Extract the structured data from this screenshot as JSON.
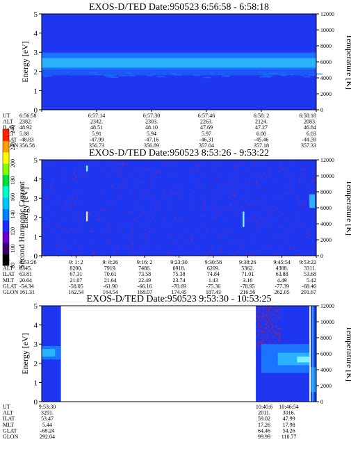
{
  "colors": {
    "background_blue": "#1f36f0",
    "band_mid": "#1a74ff",
    "band_core": "#2ab2ff",
    "streak": "#7ff0ff",
    "speckle_purple": "#7a2aa8",
    "speckle_red": "#c02040",
    "colorbar": [
      "#000000",
      "#3a006e",
      "#6a00c8",
      "#1a2cff",
      "#0080ff",
      "#00c8ff",
      "#00ffc8",
      "#00e040",
      "#80ff00",
      "#ffff00",
      "#ffa000",
      "#ff2000"
    ]
  },
  "colorbar": {
    "label": "Second Harmonic Current",
    "ticks": [
      "80",
      "100",
      "120",
      "140",
      "160",
      "180",
      "200",
      "220",
      "240"
    ],
    "range": [
      80,
      240
    ]
  },
  "chart_data": [
    {
      "type": "heatmap",
      "title": "EXOS-D/TED   Date:950523   6:56:58 - 6:58:18",
      "ylabel": "Energy [eV]",
      "y2label": "Temperature [K]",
      "ylim": [
        0,
        5
      ],
      "y2lim": [
        0,
        12000
      ],
      "yticks": [
        "0",
        "1",
        "2",
        "3",
        "4",
        "5"
      ],
      "y2ticks": [
        "0",
        "2000",
        "4000",
        "6000",
        "8000",
        "10000",
        "12000"
      ],
      "time_range": [
        "6:56:58",
        "6:58:18"
      ],
      "band": {
        "core_eV": [
          2.2,
          2.7
        ],
        "halo_eV": [
          1.8,
          3.0
        ]
      },
      "ephemeris": {
        "labels": [
          "UT",
          "ALT",
          "ILAT",
          "MLT",
          "GLAT",
          "GLON"
        ],
        "columns": [
          [
            "6:56:58",
            "2382.",
            "48.92",
            "5.88",
            "-48.83",
            "356.58"
          ],
          [
            "6:57:14",
            "2342.",
            "48.51",
            "5.91",
            "-47.99",
            "356.73"
          ],
          [
            "6:57:30",
            "2303.",
            "48.10",
            "5.94",
            "-47.16",
            "356.89"
          ],
          [
            "6:57:46",
            "2263.",
            "47.69",
            "5.97",
            "-46.31",
            "357.04"
          ],
          [
            "6:58: 2",
            "2124.",
            "47.27",
            "6.00",
            "-45.46",
            "357.18"
          ],
          [
            "6:58:18",
            "2083.",
            "46.84",
            "6.03",
            "-44.59",
            "357.33"
          ]
        ]
      }
    },
    {
      "type": "heatmap",
      "title": "EXOS-D/TED   Date:950523   8:53:26 - 9:53:22",
      "ylabel": "Energy [eV]",
      "y2label": "Temperature [K]",
      "ylim": [
        0,
        5
      ],
      "y2lim": [
        0,
        12000
      ],
      "yticks": [
        "0",
        "1",
        "2",
        "3",
        "4",
        "5"
      ],
      "y2ticks": [
        "0",
        "2000",
        "4000",
        "6000",
        "8000",
        "10000",
        "12000"
      ],
      "time_range": [
        "8:53:26",
        "9:53:22"
      ],
      "features": [
        {
          "t": 0.165,
          "eV": [
            4.4,
            4.7
          ]
        },
        {
          "t": 0.165,
          "eV": [
            1.8,
            2.3
          ]
        },
        {
          "t": 0.735,
          "eV": [
            1.5,
            2.3
          ]
        },
        {
          "t": 0.985,
          "eV": [
            2.5,
            3.2
          ]
        }
      ],
      "ephemeris": {
        "labels": [
          "UT",
          "ALT",
          "ILAT",
          "MLT",
          "GLAT",
          "GLON"
        ],
        "columns": [
          [
            "8:53:26",
            "8345.",
            "63.81",
            "20.64",
            "-54.34",
            "161.31"
          ],
          [
            "9: 1: 2",
            "8200.",
            "67.31",
            "21.07",
            "-58.05",
            "162.54"
          ],
          [
            "9: 8:26",
            "7919.",
            "70.61",
            "21.64",
            "-61.90",
            "164.54"
          ],
          [
            "9:16: 2",
            "7486.",
            "73.58",
            "22.49",
            "-66.16",
            "168.07"
          ],
          [
            "9:23:30",
            "6918.",
            "75.38",
            "23.74",
            "-70.69",
            "174.45"
          ],
          [
            "9:30:58",
            "6209.",
            "74.84",
            "1.43",
            "-75.36",
            "187.43"
          ],
          [
            "9:38:26",
            "5362.",
            "71.01",
            "3.16",
            "-78.95",
            "216.56"
          ],
          [
            "9:45:54",
            "4388.",
            "63.88",
            "4.49",
            "-77.39",
            "262.05"
          ],
          [
            "9:53:22",
            "3311.",
            "53.68",
            "5.42",
            "-68.46",
            "291.67"
          ]
        ]
      }
    },
    {
      "type": "heatmap",
      "title": "EXOS-D/TED   Date:950523   9:53:30 - 10:53:25",
      "ylabel": "Energy [eV]",
      "y2label": "Temperature [K]",
      "ylim": [
        0,
        5
      ],
      "y2lim": [
        0,
        12000
      ],
      "yticks": [
        "0",
        "1",
        "2",
        "3",
        "4",
        "5"
      ],
      "y2ticks": [
        "0",
        "2000",
        "4000",
        "6000",
        "8000",
        "10000",
        "12000"
      ],
      "time_range": [
        "9:53:30",
        "10:53:25"
      ],
      "segments": [
        {
          "t": [
            0.0,
            0.07
          ],
          "band_eV": [
            2.2,
            2.9
          ]
        },
        {
          "t": [
            0.78,
            0.975
          ],
          "band_eV": [
            1.5,
            3.0
          ]
        },
        {
          "t": [
            0.98,
            1.0
          ],
          "band_eV": [
            0.0,
            5.0
          ]
        }
      ],
      "ephemeris": {
        "labels": [
          "UT",
          "ALT",
          "ILAT",
          "MLT",
          "GLAT",
          "GLON"
        ],
        "columns": [
          [
            "9:53:30",
            "3291.",
            "53.47",
            "5.44",
            "-68.24",
            "292.04"
          ],
          [
            "10:40:6",
            "2011.",
            "59.02",
            "17.26",
            "64.46",
            "99.99"
          ],
          [
            "10:46:54",
            "3016.",
            "47.99",
            "17.98",
            "54.26",
            "110.77"
          ]
        ]
      }
    }
  ]
}
